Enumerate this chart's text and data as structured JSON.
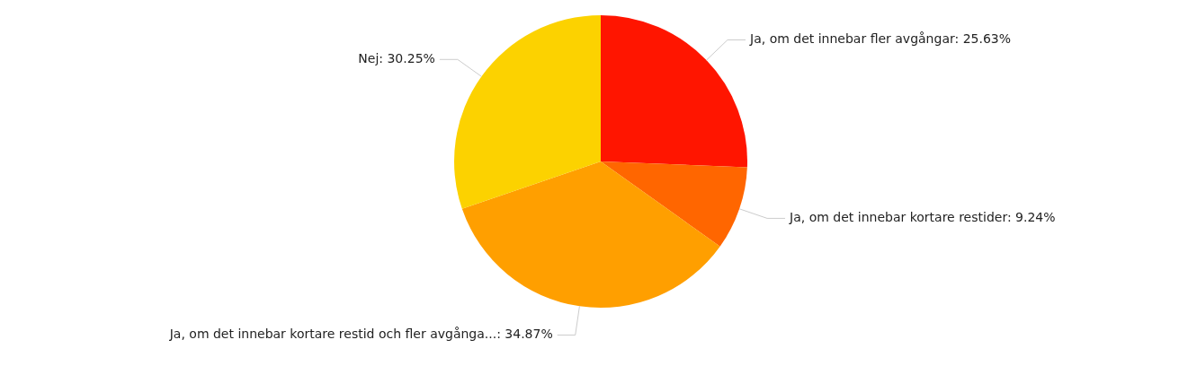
{
  "chart_data": {
    "type": "pie",
    "categories": [
      "Ja, om det innebar fler avgångar",
      "Ja, om det innebar kortare restider",
      "Ja, om det innebar kortare restid och fler avgånga...",
      "Nej"
    ],
    "values": [
      25.63,
      9.24,
      34.87,
      30.25
    ],
    "value_labels": [
      "25.63%",
      "9.24%",
      "34.87%",
      "30.25%"
    ],
    "colors": [
      "#ff1500",
      "#ff6600",
      "#ff9f00",
      "#fcd200"
    ],
    "legend": false
  }
}
